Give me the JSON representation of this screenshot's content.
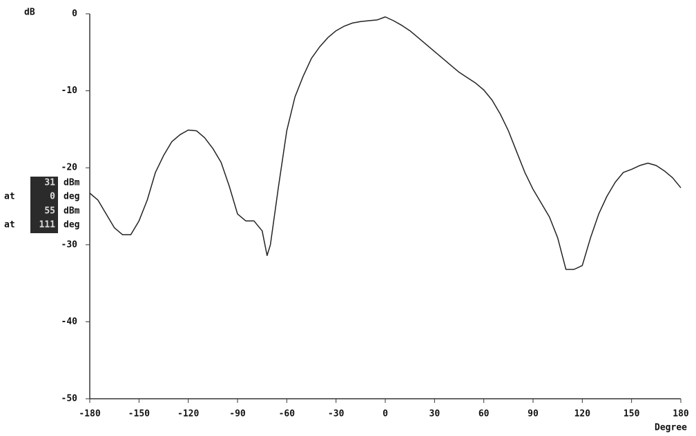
{
  "chart_data": {
    "type": "line",
    "y_label": "dB",
    "x_label": "Degree",
    "xlim": [
      -180,
      180
    ],
    "xticks": [
      -180,
      -150,
      -120,
      -90,
      -60,
      -30,
      0,
      30,
      60,
      90,
      120,
      150,
      180
    ],
    "ylim": [
      -50,
      0
    ],
    "yticks": [
      0,
      -10,
      -20,
      -30,
      -40,
      -50
    ],
    "readouts": [
      {
        "value": "31",
        "unit": "dBm"
      },
      {
        "label": "at",
        "value": "0",
        "unit": "deg"
      },
      {
        "value": "55",
        "unit": "dBm"
      },
      {
        "label": "at",
        "value": "111",
        "unit": "deg"
      }
    ],
    "series": [
      {
        "color": "#222222",
        "x": [
          -180,
          -175,
          -170,
          -165,
          -160,
          -155,
          -150,
          -145,
          -140,
          -135,
          -130,
          -125,
          -120,
          -115,
          -110,
          -105,
          -100,
          -95,
          -90,
          -85,
          -80,
          -75,
          -72,
          -70,
          -65,
          -60,
          -55,
          -50,
          -45,
          -40,
          -35,
          -30,
          -25,
          -20,
          -15,
          -10,
          -5,
          0,
          5,
          10,
          15,
          20,
          25,
          30,
          35,
          40,
          45,
          50,
          55,
          60,
          65,
          70,
          75,
          80,
          85,
          90,
          95,
          100,
          105,
          110,
          115,
          120,
          125,
          130,
          135,
          140,
          145,
          150,
          155,
          160,
          165,
          170,
          175,
          180
        ],
        "values": [
          -23.3,
          -24.2,
          -26,
          -27.8,
          -28.7,
          -28.7,
          -26.9,
          -24.2,
          -20.6,
          -18.4,
          -16.6,
          -15.7,
          -15.1,
          -15.2,
          -16.1,
          -17.5,
          -19.3,
          -22.4,
          -26,
          -26.9,
          -26.9,
          -28.2,
          -31.4,
          -30,
          -22.4,
          -15.2,
          -10.8,
          -8.1,
          -5.8,
          -4.3,
          -3.1,
          -2.2,
          -1.6,
          -1.2,
          -1.0,
          -0.9,
          -0.8,
          -0.4,
          -0.9,
          -1.5,
          -2.2,
          -3.1,
          -4,
          -4.9,
          -5.8,
          -6.7,
          -7.6,
          -8.3,
          -9,
          -9.9,
          -11.2,
          -13,
          -15.2,
          -17.9,
          -20.6,
          -22.8,
          -24.6,
          -26.4,
          -29.1,
          -33.2,
          -33.2,
          -32.7,
          -29.1,
          -26,
          -23.7,
          -21.9,
          -20.6,
          -20.2,
          -19.7,
          -19.4,
          -19.7,
          -20.4,
          -21.3,
          -22.6
        ]
      }
    ]
  }
}
